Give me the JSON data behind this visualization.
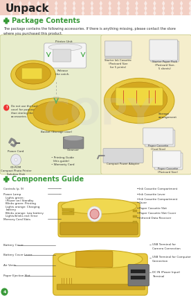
{
  "title": "Unpack",
  "header_bg": "#f2cfc4",
  "header_diamond_color": "#ffffff",
  "page_bg": "#ffffff",
  "section1_title": "Package Contents",
  "section1_desc": "The package contains the following accessories. If there is anything missing, please contact the store\nwhere you purchased this product.",
  "section2_title": "Components Guide",
  "section_title_color": "#3a9a3a",
  "icon_color": "#3a9a3a",
  "title_fontsize": 11,
  "section_title_fontsize": 7,
  "body_fontsize": 3.8,
  "label_fontsize": 3.4,
  "title_color": "#222222",
  "body_color": "#333333",
  "box1_bg": "#e8edcc",
  "box2_bg": "#f5eecc",
  "page_number": "4",
  "page_num_color": "#3a9a3a",
  "watermark": "COPY",
  "watermark_color": "#c8c8c8",
  "printer_yellow": "#e8c840",
  "printer_yellow_dark": "#c8a820",
  "printer_yellow_top": "#f0d850"
}
